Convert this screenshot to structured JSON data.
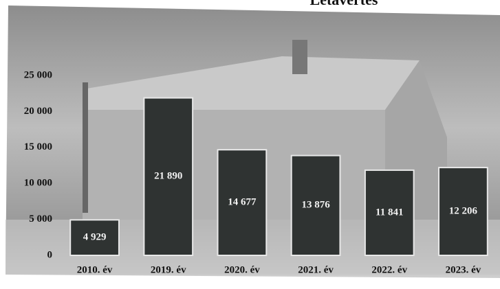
{
  "chart_data": {
    "type": "bar",
    "title": "Létavértes",
    "categories": [
      "2010. év",
      "2019. év",
      "2020. év",
      "2021. év",
      "2022. év",
      "2023. év"
    ],
    "values": [
      4929,
      21890,
      14677,
      13876,
      11841,
      12206
    ],
    "value_labels": [
      "4 929",
      "21 890",
      "14 677",
      "13 876",
      "11 841",
      "12 206"
    ],
    "color": "#2f3332",
    "ylim": [
      0,
      25000
    ],
    "yticks": [
      0,
      {
        "value": 5000,
        "label": "5 000"
      },
      {
        "value": 10000,
        "label": "10 000"
      },
      {
        "value": 15000,
        "label": "15 000"
      },
      {
        "value": 20000,
        "label": "20 000"
      },
      {
        "value": 25000,
        "label": "25 000"
      }
    ],
    "grid": false
  }
}
